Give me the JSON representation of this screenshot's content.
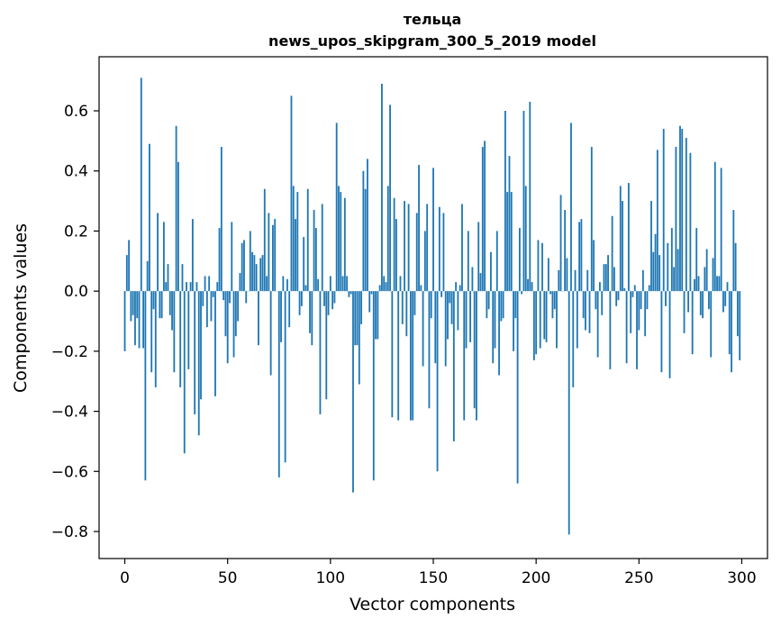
{
  "chart_data": {
    "type": "bar",
    "title": "тельца",
    "subtitle": "news_upos_skipgram_300_5_2019 model",
    "xlabel": "Vector components",
    "ylabel": "Components values",
    "xlim": [
      -12.5,
      312.5
    ],
    "ylim": [
      -0.89,
      0.78
    ],
    "x_ticks": [
      0,
      50,
      100,
      150,
      200,
      250,
      300
    ],
    "x_tick_labels": [
      "0",
      "50",
      "100",
      "150",
      "200",
      "250",
      "300"
    ],
    "y_ticks": [
      -0.8,
      -0.6,
      -0.4,
      -0.2,
      0.0,
      0.2,
      0.4,
      0.6
    ],
    "y_tick_labels": [
      "−0.8",
      "−0.6",
      "−0.4",
      "−0.2",
      "0.0",
      "0.2",
      "0.4",
      "0.6"
    ],
    "grid": false,
    "bar_color": "#1f77b4",
    "values": [
      -0.2,
      0.12,
      0.17,
      -0.1,
      -0.08,
      -0.18,
      -0.09,
      -0.19,
      0.71,
      -0.19,
      -0.63,
      0.1,
      0.49,
      -0.27,
      -0.06,
      -0.32,
      0.26,
      -0.09,
      -0.09,
      0.23,
      0.03,
      0.09,
      -0.08,
      -0.13,
      -0.27,
      0.55,
      0.43,
      -0.32,
      0.09,
      -0.54,
      0.03,
      -0.26,
      0.03,
      0.24,
      -0.41,
      0.03,
      -0.48,
      -0.36,
      -0.05,
      0.05,
      -0.12,
      0.05,
      -0.1,
      -0.02,
      -0.35,
      0.03,
      0.21,
      0.48,
      -0.03,
      -0.15,
      -0.24,
      -0.04,
      0.23,
      -0.22,
      -0.15,
      -0.1,
      0.06,
      0.16,
      0.17,
      -0.04,
      0.0,
      0.2,
      0.13,
      0.12,
      0.09,
      -0.18,
      0.11,
      0.12,
      0.34,
      0.05,
      0.26,
      -0.28,
      0.22,
      0.24,
      0.0,
      -0.62,
      -0.17,
      0.05,
      -0.57,
      0.04,
      -0.12,
      0.65,
      0.35,
      0.24,
      0.33,
      -0.08,
      -0.05,
      0.18,
      0.02,
      0.34,
      -0.14,
      -0.18,
      0.27,
      0.21,
      0.04,
      -0.41,
      0.29,
      -0.05,
      -0.36,
      -0.08,
      0.05,
      -0.06,
      -0.04,
      0.56,
      0.35,
      0.33,
      0.05,
      0.31,
      0.05,
      -0.02,
      -0.01,
      -0.67,
      -0.18,
      -0.18,
      -0.31,
      -0.11,
      0.4,
      0.34,
      0.44,
      -0.07,
      -0.01,
      -0.63,
      -0.16,
      -0.16,
      0.02,
      0.69,
      0.05,
      0.03,
      0.35,
      0.62,
      -0.42,
      0.31,
      0.24,
      -0.43,
      0.05,
      -0.11,
      0.3,
      -0.15,
      0.29,
      -0.43,
      -0.43,
      -0.08,
      0.26,
      0.42,
      0.02,
      -0.25,
      0.2,
      0.29,
      -0.39,
      -0.09,
      0.41,
      -0.24,
      -0.6,
      0.28,
      -0.02,
      0.26,
      -0.25,
      -0.16,
      -0.04,
      -0.11,
      -0.5,
      0.03,
      -0.13,
      0.02,
      0.29,
      -0.43,
      -0.19,
      0.2,
      -0.17,
      0.08,
      -0.39,
      -0.43,
      0.23,
      0.06,
      0.48,
      0.5,
      -0.09,
      -0.06,
      0.13,
      -0.24,
      -0.19,
      0.2,
      -0.28,
      -0.1,
      -0.09,
      0.6,
      0.33,
      0.45,
      0.33,
      -0.2,
      -0.09,
      -0.64,
      0.21,
      -0.01,
      0.6,
      0.35,
      0.04,
      0.63,
      0.03,
      -0.23,
      -0.21,
      0.17,
      -0.19,
      0.16,
      -0.16,
      -0.17,
      0.11,
      -0.01,
      -0.09,
      -0.06,
      -0.19,
      0.07,
      0.32,
      0.0,
      0.27,
      0.11,
      -0.81,
      0.56,
      -0.32,
      0.07,
      -0.19,
      0.23,
      0.24,
      -0.09,
      -0.13,
      0.07,
      -0.14,
      0.48,
      0.17,
      -0.06,
      -0.22,
      0.03,
      -0.08,
      0.09,
      0.09,
      0.12,
      -0.26,
      0.25,
      0.08,
      -0.05,
      -0.03,
      0.35,
      0.3,
      0.01,
      -0.24,
      0.36,
      -0.14,
      -0.02,
      0.02,
      -0.26,
      -0.13,
      -0.06,
      0.07,
      -0.15,
      -0.06,
      0.02,
      0.3,
      0.13,
      0.19,
      0.47,
      0.12,
      -0.27,
      0.54,
      -0.05,
      0.16,
      -0.29,
      0.21,
      0.08,
      0.48,
      0.14,
      0.55,
      0.54,
      -0.14,
      0.51,
      -0.07,
      0.46,
      -0.21,
      0.04,
      0.21,
      0.05,
      -0.08,
      -0.09,
      0.08,
      0.14,
      -0.06,
      -0.22,
      0.11,
      0.43,
      0.05,
      0.05,
      0.41,
      -0.07,
      -0.05,
      0.03,
      -0.21,
      -0.27,
      0.27,
      0.16,
      -0.15,
      -0.23
    ]
  }
}
